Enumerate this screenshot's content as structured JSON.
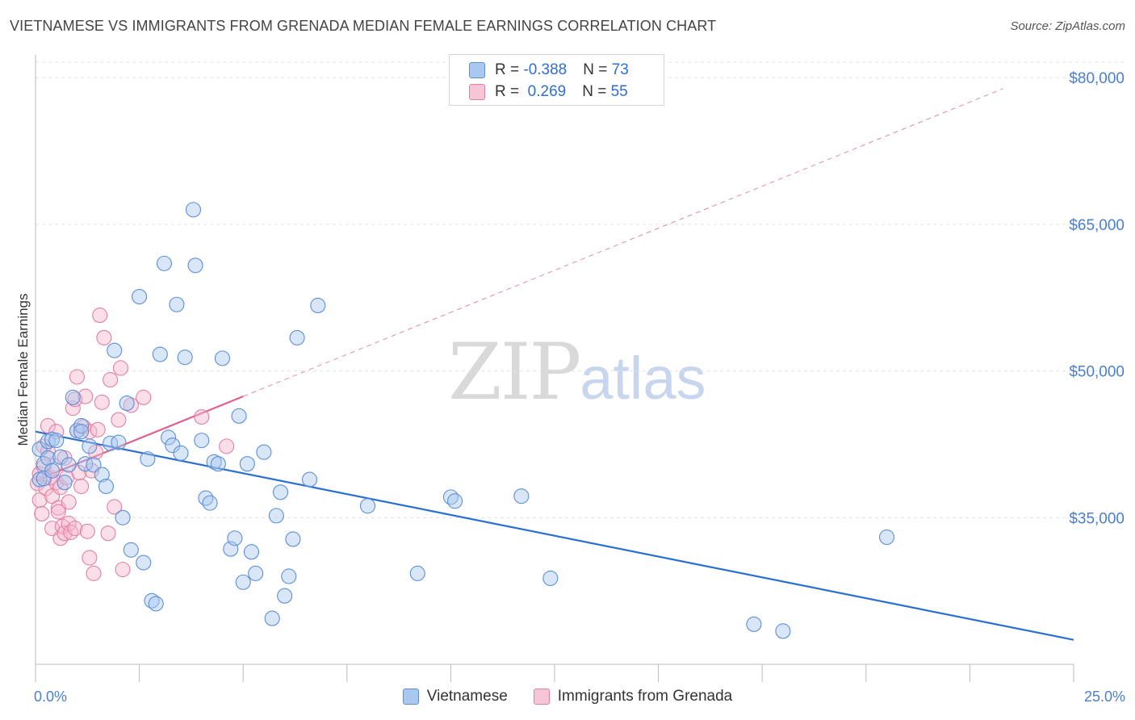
{
  "title": "VIETNAMESE VS IMMIGRANTS FROM GRENADA MEDIAN FEMALE EARNINGS CORRELATION CHART",
  "source": "Source: ZipAtlas.com",
  "watermark": {
    "zip": "ZIP",
    "atlas": "atlas"
  },
  "legend": {
    "rows": [
      {
        "r_label": "R = ",
        "r_value": "-0.388",
        "n_label": "N = ",
        "n_value": "73"
      },
      {
        "r_label": "R = ",
        "r_value": " 0.269",
        "n_label": "N = ",
        "n_value": "55"
      }
    ]
  },
  "bottom_legend": [
    "Vietnamese",
    "Immigrants from Grenada"
  ],
  "colors": {
    "blue_fill": "#a9c8f0",
    "blue_stroke": "#5b8fd8",
    "blue_line": "#2a6fd0",
    "pink_fill": "#f6b8cc",
    "pink_stroke": "#e37fa3",
    "pink_line": "#e0608e",
    "axis_text": "#4a7fd0",
    "grid": "#e2e2e2"
  },
  "chart_data": {
    "type": "scatter",
    "title": "VIETNAMESE VS IMMIGRANTS FROM GRENADA MEDIAN FEMALE EARNINGS CORRELATION CHART",
    "xlabel": "",
    "ylabel": "Median Female Earnings",
    "xlim": [
      0,
      25
    ],
    "ylim": [
      20000,
      82000
    ],
    "x_tick_labels": [
      "0.0%",
      "25.0%"
    ],
    "y_ticks": [
      35000,
      50000,
      65000,
      80000
    ],
    "y_tick_labels": [
      "$35,000",
      "$50,000",
      "$65,000",
      "$80,000"
    ],
    "series": [
      {
        "name": "Vietnamese",
        "r": -0.388,
        "n": 73,
        "trend": {
          "x": [
            0,
            25
          ],
          "y": [
            43800,
            22500
          ]
        },
        "points": [
          [
            0.1,
            38900
          ],
          [
            0.1,
            42000
          ],
          [
            0.2,
            40500
          ],
          [
            0.2,
            39000
          ],
          [
            0.3,
            42800
          ],
          [
            0.3,
            41100
          ],
          [
            0.4,
            43000
          ],
          [
            0.4,
            39800
          ],
          [
            0.5,
            42900
          ],
          [
            0.6,
            41200
          ],
          [
            0.7,
            38600
          ],
          [
            0.8,
            40400
          ],
          [
            0.9,
            47300
          ],
          [
            1.0,
            43900
          ],
          [
            1.1,
            44400
          ],
          [
            1.1,
            43800
          ],
          [
            1.2,
            40500
          ],
          [
            1.3,
            42300
          ],
          [
            1.4,
            40400
          ],
          [
            1.6,
            39400
          ],
          [
            1.7,
            38200
          ],
          [
            1.8,
            42600
          ],
          [
            1.9,
            52100
          ],
          [
            2.0,
            42700
          ],
          [
            2.1,
            35000
          ],
          [
            2.2,
            46700
          ],
          [
            2.3,
            31700
          ],
          [
            2.5,
            57600
          ],
          [
            2.6,
            30400
          ],
          [
            2.7,
            41000
          ],
          [
            2.8,
            26500
          ],
          [
            2.9,
            26200
          ],
          [
            3.0,
            51700
          ],
          [
            3.1,
            61000
          ],
          [
            3.2,
            43200
          ],
          [
            3.3,
            42400
          ],
          [
            3.4,
            56800
          ],
          [
            3.5,
            41600
          ],
          [
            3.6,
            51400
          ],
          [
            3.8,
            66500
          ],
          [
            3.85,
            60800
          ],
          [
            4.0,
            42900
          ],
          [
            4.1,
            37000
          ],
          [
            4.2,
            36500
          ],
          [
            4.3,
            40700
          ],
          [
            4.4,
            40500
          ],
          [
            4.5,
            51300
          ],
          [
            4.7,
            31800
          ],
          [
            4.8,
            32900
          ],
          [
            4.9,
            45400
          ],
          [
            5.0,
            28400
          ],
          [
            5.1,
            40500
          ],
          [
            5.2,
            31500
          ],
          [
            5.3,
            29300
          ],
          [
            5.5,
            41700
          ],
          [
            5.7,
            24700
          ],
          [
            5.8,
            35200
          ],
          [
            5.9,
            37600
          ],
          [
            6.0,
            27000
          ],
          [
            6.1,
            29000
          ],
          [
            6.2,
            32800
          ],
          [
            6.3,
            53400
          ],
          [
            6.6,
            38900
          ],
          [
            6.8,
            56700
          ],
          [
            8.0,
            36200
          ],
          [
            9.2,
            29300
          ],
          [
            10.0,
            37100
          ],
          [
            10.1,
            36700
          ],
          [
            11.7,
            37200
          ],
          [
            12.4,
            28800
          ],
          [
            17.3,
            24100
          ],
          [
            18.0,
            23400
          ],
          [
            20.5,
            33000
          ]
        ]
      },
      {
        "name": "Immigrants from Grenada",
        "r": 0.269,
        "n": 55,
        "trend": {
          "x": [
            0,
            5
          ],
          "y": [
            38800,
            47400
          ]
        },
        "points": [
          [
            0.05,
            38500
          ],
          [
            0.1,
            39500
          ],
          [
            0.1,
            36800
          ],
          [
            0.15,
            35400
          ],
          [
            0.2,
            42300
          ],
          [
            0.2,
            40200
          ],
          [
            0.25,
            38000
          ],
          [
            0.3,
            44400
          ],
          [
            0.3,
            41800
          ],
          [
            0.35,
            39100
          ],
          [
            0.4,
            37200
          ],
          [
            0.4,
            33900
          ],
          [
            0.45,
            40300
          ],
          [
            0.5,
            38600
          ],
          [
            0.5,
            43800
          ],
          [
            0.55,
            36000
          ],
          [
            0.55,
            35600
          ],
          [
            0.6,
            38100
          ],
          [
            0.6,
            32900
          ],
          [
            0.65,
            34100
          ],
          [
            0.7,
            41100
          ],
          [
            0.7,
            33400
          ],
          [
            0.75,
            39100
          ],
          [
            0.8,
            36600
          ],
          [
            0.8,
            34400
          ],
          [
            0.85,
            33500
          ],
          [
            0.9,
            46200
          ],
          [
            0.95,
            47100
          ],
          [
            0.95,
            33900
          ],
          [
            1.0,
            49400
          ],
          [
            1.0,
            43900
          ],
          [
            1.05,
            39600
          ],
          [
            1.1,
            38200
          ],
          [
            1.15,
            44300
          ],
          [
            1.2,
            47400
          ],
          [
            1.25,
            33600
          ],
          [
            1.3,
            43800
          ],
          [
            1.3,
            30900
          ],
          [
            1.35,
            39800
          ],
          [
            1.4,
            29300
          ],
          [
            1.45,
            41700
          ],
          [
            1.5,
            44000
          ],
          [
            1.55,
            55700
          ],
          [
            1.6,
            46800
          ],
          [
            1.65,
            53400
          ],
          [
            1.75,
            33400
          ],
          [
            1.8,
            49100
          ],
          [
            1.9,
            36100
          ],
          [
            2.0,
            45000
          ],
          [
            2.05,
            50300
          ],
          [
            2.1,
            29700
          ],
          [
            2.3,
            46500
          ],
          [
            2.6,
            47300
          ],
          [
            4.0,
            45300
          ],
          [
            4.6,
            42300
          ]
        ]
      }
    ]
  }
}
